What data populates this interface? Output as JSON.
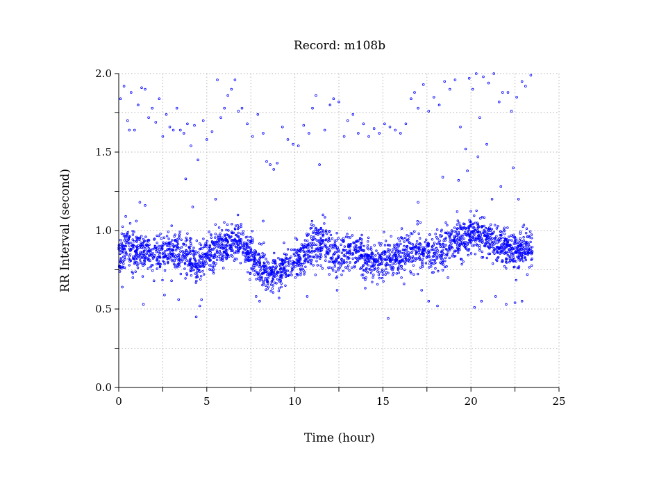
{
  "chart_data": {
    "type": "scatter",
    "title": "Record:  m108b",
    "xlabel": "Time (hour)",
    "ylabel": "RR Interval (second)",
    "xlim": [
      0,
      25
    ],
    "ylim": [
      0.0,
      2.0
    ],
    "x_ticks": [
      0,
      5,
      10,
      15,
      20,
      25
    ],
    "x_tick_labels": [
      "0",
      "5",
      "10",
      "15",
      "20",
      "25"
    ],
    "y_ticks": [
      0.0,
      0.5,
      1.0,
      1.5,
      2.0
    ],
    "y_tick_labels": [
      "0.0",
      "0.5",
      "1.0",
      "1.5",
      "2.0"
    ],
    "grid": true,
    "marker_color": "#0000ff",
    "marker": "open-circle",
    "trend": {
      "x": [
        0,
        0.5,
        1,
        1.5,
        2,
        2.5,
        3,
        3.5,
        4,
        4.5,
        5,
        5.5,
        6,
        6.5,
        7,
        7.5,
        8,
        8.5,
        9,
        9.5,
        10,
        10.5,
        11,
        11.5,
        12,
        12.5,
        13,
        13.5,
        14,
        14.5,
        15,
        15.5,
        16,
        16.5,
        17,
        17.5,
        18,
        18.5,
        19,
        19.5,
        20,
        20.5,
        21,
        21.5,
        22,
        22.5,
        23,
        23.5
      ],
      "y": [
        0.85,
        0.9,
        0.88,
        0.86,
        0.84,
        0.86,
        0.88,
        0.86,
        0.82,
        0.77,
        0.84,
        0.88,
        0.9,
        0.93,
        0.9,
        0.86,
        0.78,
        0.72,
        0.74,
        0.78,
        0.8,
        0.84,
        0.9,
        0.92,
        0.88,
        0.83,
        0.86,
        0.88,
        0.82,
        0.8,
        0.82,
        0.82,
        0.83,
        0.86,
        0.88,
        0.87,
        0.86,
        0.9,
        0.93,
        0.96,
        0.98,
        0.98,
        0.96,
        0.92,
        0.9,
        0.88,
        0.88,
        0.9
      ]
    },
    "outliers": [
      [
        0.1,
        1.84
      ],
      [
        0.3,
        1.92
      ],
      [
        0.5,
        1.7
      ],
      [
        0.6,
        1.64
      ],
      [
        0.7,
        1.88
      ],
      [
        0.9,
        1.64
      ],
      [
        1.1,
        1.8
      ],
      [
        1.3,
        1.91
      ],
      [
        1.5,
        1.9
      ],
      [
        1.7,
        1.72
      ],
      [
        1.9,
        1.78
      ],
      [
        2.1,
        1.69
      ],
      [
        2.3,
        1.84
      ],
      [
        2.5,
        1.6
      ],
      [
        2.7,
        1.74
      ],
      [
        2.9,
        1.66
      ],
      [
        3.1,
        1.64
      ],
      [
        3.3,
        1.78
      ],
      [
        3.5,
        1.64
      ],
      [
        3.7,
        1.62
      ],
      [
        3.9,
        1.68
      ],
      [
        4.1,
        1.54
      ],
      [
        4.3,
        1.67
      ],
      [
        4.5,
        1.45
      ],
      [
        4.8,
        1.7
      ],
      [
        5.0,
        1.58
      ],
      [
        5.3,
        1.63
      ],
      [
        5.6,
        1.96
      ],
      [
        5.8,
        1.72
      ],
      [
        6.0,
        1.78
      ],
      [
        6.2,
        1.86
      ],
      [
        6.4,
        1.9
      ],
      [
        6.6,
        1.96
      ],
      [
        6.8,
        1.76
      ],
      [
        7.0,
        1.78
      ],
      [
        7.3,
        1.68
      ],
      [
        7.6,
        1.6
      ],
      [
        7.9,
        1.74
      ],
      [
        8.2,
        1.62
      ],
      [
        8.4,
        1.44
      ],
      [
        8.6,
        1.42
      ],
      [
        8.8,
        1.39
      ],
      [
        9.0,
        1.43
      ],
      [
        9.3,
        1.66
      ],
      [
        9.6,
        1.58
      ],
      [
        9.9,
        1.55
      ],
      [
        10.2,
        1.54
      ],
      [
        10.5,
        1.67
      ],
      [
        10.8,
        1.62
      ],
      [
        11.0,
        1.78
      ],
      [
        11.2,
        1.86
      ],
      [
        11.4,
        1.42
      ],
      [
        11.7,
        1.64
      ],
      [
        12.0,
        1.8
      ],
      [
        12.2,
        1.84
      ],
      [
        12.5,
        1.82
      ],
      [
        12.8,
        1.6
      ],
      [
        13.0,
        1.7
      ],
      [
        13.3,
        1.74
      ],
      [
        13.6,
        1.62
      ],
      [
        13.9,
        1.68
      ],
      [
        14.2,
        1.6
      ],
      [
        14.5,
        1.65
      ],
      [
        14.8,
        1.62
      ],
      [
        15.1,
        1.68
      ],
      [
        15.4,
        1.66
      ],
      [
        15.7,
        1.64
      ],
      [
        16.0,
        1.62
      ],
      [
        16.3,
        1.68
      ],
      [
        16.6,
        1.84
      ],
      [
        16.8,
        1.88
      ],
      [
        17.0,
        1.78
      ],
      [
        17.3,
        1.93
      ],
      [
        17.6,
        1.76
      ],
      [
        17.9,
        1.85
      ],
      [
        18.2,
        1.8
      ],
      [
        18.5,
        1.95
      ],
      [
        18.8,
        1.9
      ],
      [
        19.1,
        1.96
      ],
      [
        19.4,
        1.66
      ],
      [
        19.7,
        1.52
      ],
      [
        19.9,
        1.97
      ],
      [
        20.1,
        1.9
      ],
      [
        20.3,
        2.0
      ],
      [
        20.5,
        1.72
      ],
      [
        20.7,
        1.98
      ],
      [
        21.0,
        1.94
      ],
      [
        21.3,
        2.0
      ],
      [
        21.6,
        1.82
      ],
      [
        21.8,
        1.88
      ],
      [
        22.1,
        1.88
      ],
      [
        22.3,
        1.76
      ],
      [
        22.6,
        1.85
      ],
      [
        22.9,
        1.95
      ],
      [
        23.1,
        1.92
      ],
      [
        23.4,
        1.99
      ],
      [
        0.2,
        0.64
      ],
      [
        0.4,
        1.09
      ],
      [
        0.8,
        0.7
      ],
      [
        1.0,
        1.06
      ],
      [
        1.2,
        1.18
      ],
      [
        1.4,
        0.53
      ],
      [
        1.5,
        1.16
      ],
      [
        2.0,
        0.68
      ],
      [
        2.6,
        0.59
      ],
      [
        3.0,
        0.68
      ],
      [
        3.4,
        0.56
      ],
      [
        3.8,
        1.33
      ],
      [
        4.2,
        1.15
      ],
      [
        4.4,
        0.45
      ],
      [
        4.6,
        0.52
      ],
      [
        4.7,
        0.56
      ],
      [
        5.5,
        1.2
      ],
      [
        7.8,
        0.58
      ],
      [
        8.0,
        0.55
      ],
      [
        8.2,
        1.06
      ],
      [
        9.1,
        0.57
      ],
      [
        10.7,
        0.58
      ],
      [
        11.2,
        0.98
      ],
      [
        11.6,
        1.1
      ],
      [
        12.4,
        0.62
      ],
      [
        13.1,
        1.08
      ],
      [
        15.0,
        0.72
      ],
      [
        15.3,
        0.44
      ],
      [
        16.2,
        0.66
      ],
      [
        17.0,
        1.18
      ],
      [
        17.2,
        0.62
      ],
      [
        17.6,
        0.55
      ],
      [
        18.1,
        0.52
      ],
      [
        18.4,
        1.34
      ],
      [
        18.7,
        0.7
      ],
      [
        19.3,
        1.32
      ],
      [
        19.8,
        1.38
      ],
      [
        20.2,
        0.51
      ],
      [
        20.4,
        1.47
      ],
      [
        20.6,
        0.55
      ],
      [
        20.9,
        1.55
      ],
      [
        21.2,
        1.2
      ],
      [
        21.4,
        0.58
      ],
      [
        21.7,
        1.28
      ],
      [
        22.0,
        0.53
      ],
      [
        22.4,
        1.4
      ],
      [
        22.5,
        0.54
      ],
      [
        22.7,
        1.2
      ],
      [
        22.9,
        0.55
      ],
      [
        23.2,
        0.72
      ]
    ]
  }
}
